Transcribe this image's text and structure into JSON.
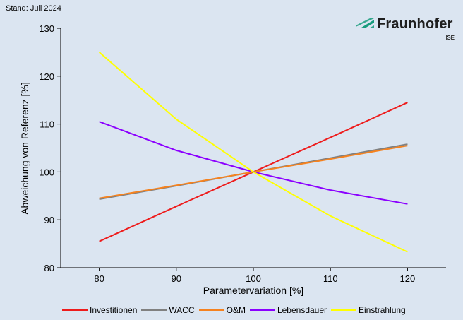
{
  "header": {
    "stand": "Stand: Juli 2024"
  },
  "logo": {
    "name": "Fraunhofer",
    "sub": "ISE",
    "color": "#179c7d"
  },
  "chart_data": {
    "type": "line",
    "xlabel": "Parametervariation [%]",
    "ylabel": "Abweichung von Referenz [%]",
    "xlim": [
      75,
      125
    ],
    "ylim": [
      80,
      130
    ],
    "xticks": [
      80,
      90,
      100,
      110,
      120
    ],
    "yticks": [
      80,
      90,
      100,
      110,
      120,
      130
    ],
    "x": [
      80,
      90,
      100,
      110,
      120
    ],
    "grid": false,
    "legend_position": "bottom",
    "series": [
      {
        "name": "Investitionen",
        "color": "#ee1c1c",
        "values": [
          85.5,
          92.8,
          100,
          107.2,
          114.5
        ]
      },
      {
        "name": "WACC",
        "color": "#808080",
        "values": [
          94.3,
          97.1,
          100,
          102.9,
          105.8
        ]
      },
      {
        "name": "O&M",
        "color": "#f5821f",
        "values": [
          94.5,
          97.2,
          100,
          102.7,
          105.5
        ]
      },
      {
        "name": "Lebensdauer",
        "color": "#8b00ff",
        "values": [
          110.5,
          104.5,
          100,
          96.2,
          93.3
        ]
      },
      {
        "name": "Einstrahlung",
        "color": "#ffff00",
        "values": [
          125,
          111,
          100,
          90.8,
          83.3
        ]
      }
    ]
  }
}
